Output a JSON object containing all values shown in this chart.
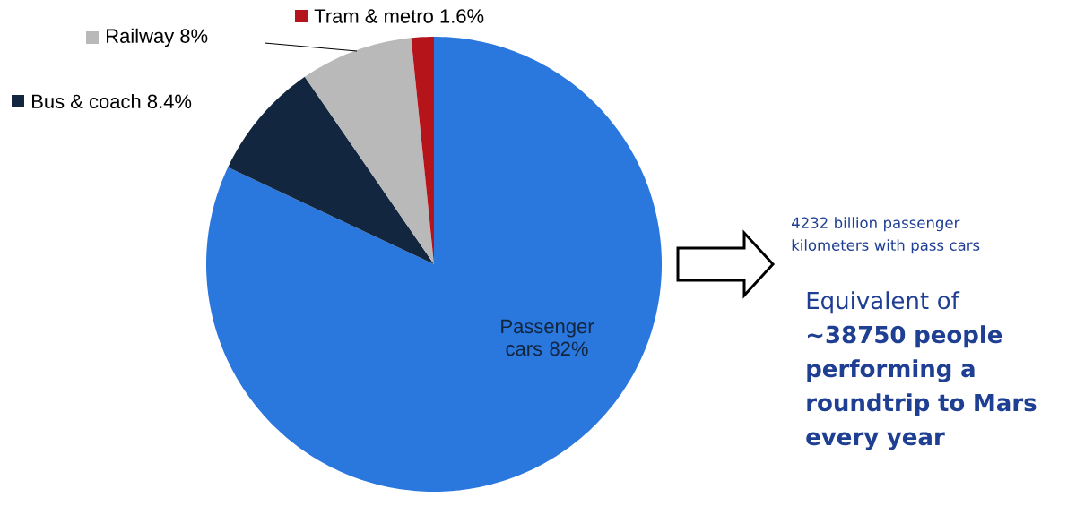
{
  "chart_data": {
    "type": "pie",
    "categories": [
      "Passenger cars",
      "Bus & coach",
      "Railway",
      "Tram & metro"
    ],
    "values": [
      82,
      8.4,
      8,
      1.6
    ],
    "legend": "top left",
    "colors": [
      "#2a77de",
      "#12263f",
      "#b9b9b9",
      "#b5141b"
    ],
    "value_labels": [
      "82%",
      "8.4%",
      "8%",
      "1.6%"
    ],
    "annotations": [
      "4232 billion passenger kilometers with pass cars",
      "Equivalent of **~38750 people performing a roundtrip to Mars every year**"
    ]
  }
}
